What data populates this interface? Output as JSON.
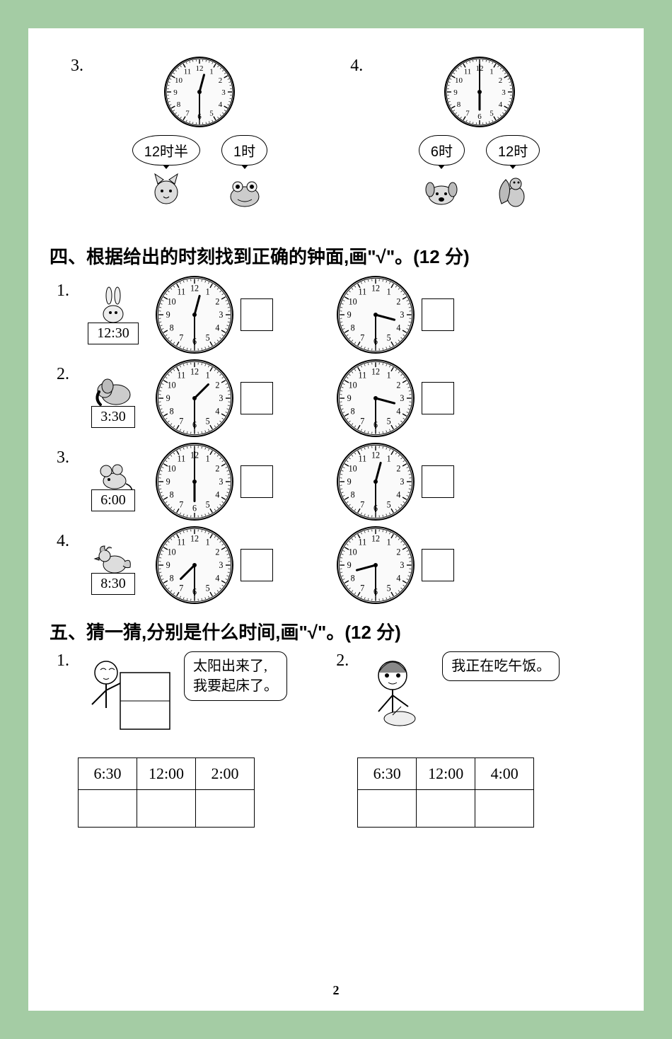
{
  "colors": {
    "page_bg": "#a4cca4",
    "paper": "#ffffff",
    "ink": "#000000",
    "clock_face": "#f5f5f5"
  },
  "top_questions": [
    {
      "num": "3.",
      "clock": {
        "hour": 12,
        "minute": 30,
        "diam": 100
      },
      "options": [
        {
          "label": "12时半",
          "animal": "cat"
        },
        {
          "label": "1时",
          "animal": "frog"
        }
      ]
    },
    {
      "num": "4.",
      "clock": {
        "hour": 6,
        "minute": 0,
        "diam": 100
      },
      "options": [
        {
          "label": "6时",
          "animal": "dog"
        },
        {
          "label": "12时",
          "animal": "squirrel"
        }
      ]
    }
  ],
  "section4": {
    "heading": "四、根据给出的时刻找到正确的钟面,画\"√\"。(12 分)",
    "items": [
      {
        "num": "1.",
        "animal": "rabbit",
        "time_label": "12:30",
        "clocks": [
          {
            "hour": 12,
            "minute": 30
          },
          {
            "hour": 3,
            "minute": 30
          }
        ]
      },
      {
        "num": "2.",
        "animal": "elephant",
        "time_label": "3:30",
        "clocks": [
          {
            "hour": 1,
            "minute": 30
          },
          {
            "hour": 3,
            "minute": 30
          }
        ]
      },
      {
        "num": "3.",
        "animal": "mouse",
        "time_label": "6:00",
        "clocks": [
          {
            "hour": 6,
            "minute": 0
          },
          {
            "hour": 12,
            "minute": 30
          }
        ]
      },
      {
        "num": "4.",
        "animal": "rooster",
        "time_label": "8:30",
        "clocks": [
          {
            "hour": 7,
            "minute": 30
          },
          {
            "hour": 8,
            "minute": 30
          }
        ]
      }
    ],
    "clock_diam": 110
  },
  "section5": {
    "heading": "五、猜一猜,分别是什么时间,画\"√\"。(12 分)",
    "items": [
      {
        "num": "1.",
        "text_lines": [
          "太阳出来了,",
          "我要起床了。"
        ],
        "figure": "boy-waking",
        "options": [
          "6:30",
          "12:00",
          "2:00"
        ]
      },
      {
        "num": "2.",
        "text_lines": [
          "我正在吃午饭。"
        ],
        "figure": "girl-eating",
        "options": [
          "6:30",
          "12:00",
          "4:00"
        ]
      }
    ]
  },
  "page_number": "2"
}
